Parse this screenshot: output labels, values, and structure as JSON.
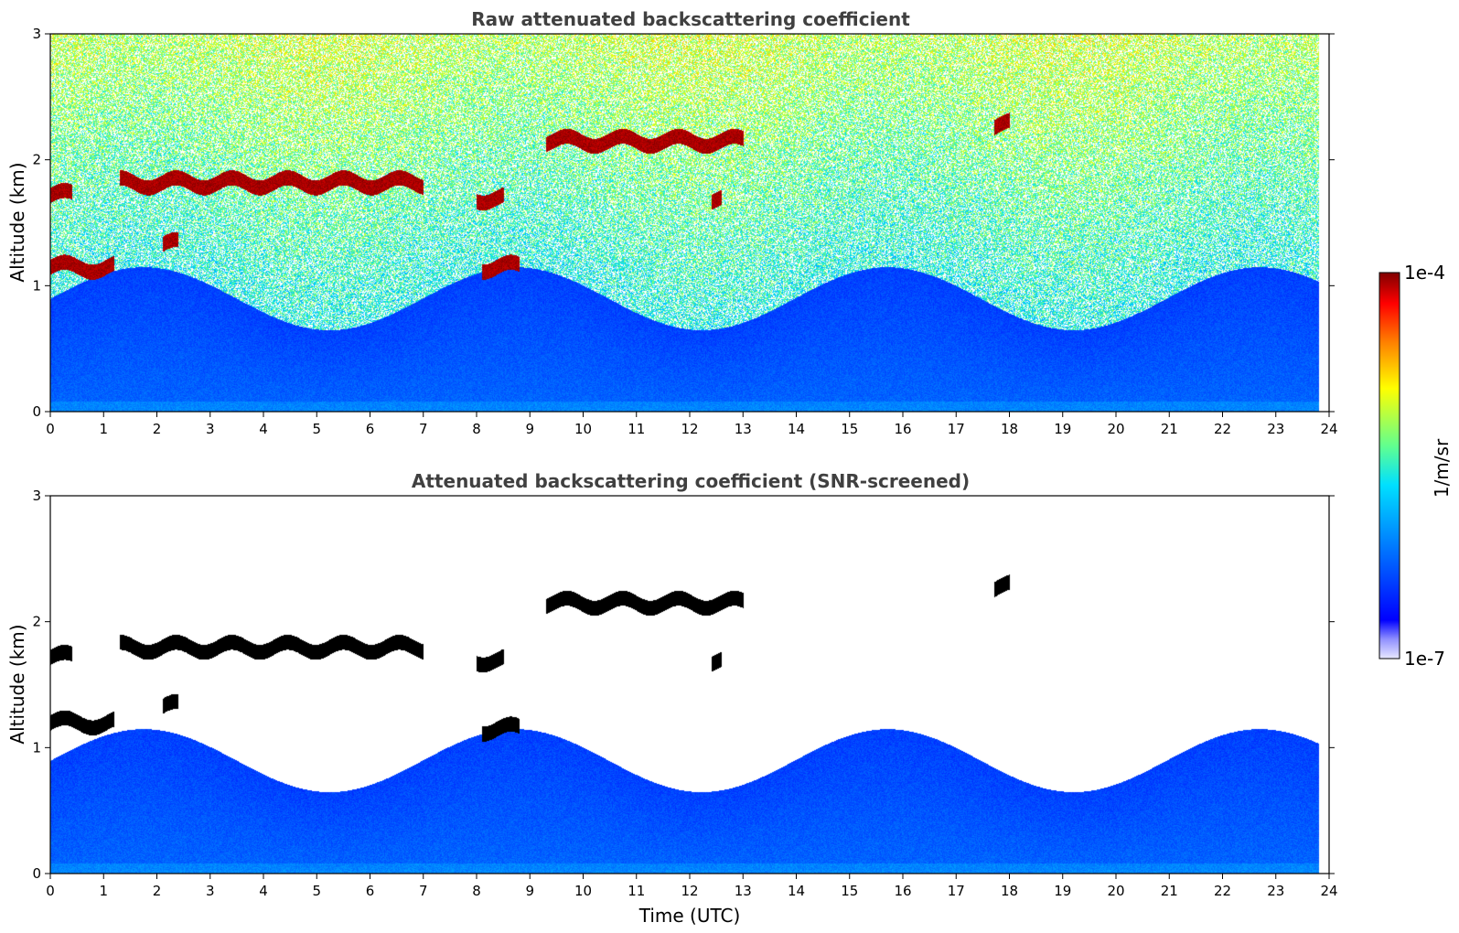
{
  "chart_data": [
    {
      "type": "heatmap",
      "title": "Raw attenuated backscattering coefficient",
      "xlabel": "",
      "ylabel": "Altitude (km)",
      "xlim": [
        0,
        24
      ],
      "ylim": [
        0,
        3
      ],
      "xticks": [
        "0",
        "1",
        "2",
        "3",
        "4",
        "5",
        "6",
        "7",
        "8",
        "9",
        "10",
        "11",
        "12",
        "13",
        "14",
        "15",
        "16",
        "17",
        "18",
        "19",
        "20",
        "21",
        "22",
        "23",
        "24"
      ],
      "yticks": [
        "0",
        "1",
        "2",
        "3"
      ],
      "data_end_time": 23.8,
      "screened": false,
      "cloud_layers": [
        {
          "t_start": 0.0,
          "t_end": 0.4,
          "alt": 1.72
        },
        {
          "t_start": 0.0,
          "t_end": 1.2,
          "alt": 1.15
        },
        {
          "t_start": 1.3,
          "t_end": 7.0,
          "alt": 1.82
        },
        {
          "t_start": 2.1,
          "t_end": 2.4,
          "alt": 1.33
        },
        {
          "t_start": 8.0,
          "t_end": 8.5,
          "alt": 1.7
        },
        {
          "t_start": 8.1,
          "t_end": 8.8,
          "alt": 1.15
        },
        {
          "t_start": 9.3,
          "t_end": 13.0,
          "alt": 2.15
        },
        {
          "t_start": 12.4,
          "t_end": 12.6,
          "alt": 1.7
        },
        {
          "t_start": 17.7,
          "t_end": 18.0,
          "alt": 2.28
        }
      ]
    },
    {
      "type": "heatmap",
      "title": "Attenuated backscattering coefficient (SNR-screened)",
      "xlabel": "Time (UTC)",
      "ylabel": "Altitude (km)",
      "xlim": [
        0,
        24
      ],
      "ylim": [
        0,
        3
      ],
      "xticks": [
        "0",
        "1",
        "2",
        "3",
        "4",
        "5",
        "6",
        "7",
        "8",
        "9",
        "10",
        "11",
        "12",
        "13",
        "14",
        "15",
        "16",
        "17",
        "18",
        "19",
        "20",
        "21",
        "22",
        "23",
        "24"
      ],
      "yticks": [
        "0",
        "1",
        "2",
        "3"
      ],
      "data_end_time": 23.8,
      "screened": true,
      "cloud_layers": [
        {
          "t_start": 0.0,
          "t_end": 0.4,
          "alt": 1.72
        },
        {
          "t_start": 0.0,
          "t_end": 1.2,
          "alt": 1.2
        },
        {
          "t_start": 1.3,
          "t_end": 7.0,
          "alt": 1.8
        },
        {
          "t_start": 2.1,
          "t_end": 2.4,
          "alt": 1.33
        },
        {
          "t_start": 8.0,
          "t_end": 8.5,
          "alt": 1.7
        },
        {
          "t_start": 8.1,
          "t_end": 8.8,
          "alt": 1.15
        },
        {
          "t_start": 9.3,
          "t_end": 13.0,
          "alt": 2.15
        },
        {
          "t_start": 12.4,
          "t_end": 12.6,
          "alt": 1.7
        },
        {
          "t_start": 17.7,
          "t_end": 18.0,
          "alt": 2.28
        }
      ]
    }
  ],
  "colorbar": {
    "label": "1/m/sr",
    "max_label": "1e-4",
    "min_label": "1e-7",
    "colormap": "jet"
  }
}
